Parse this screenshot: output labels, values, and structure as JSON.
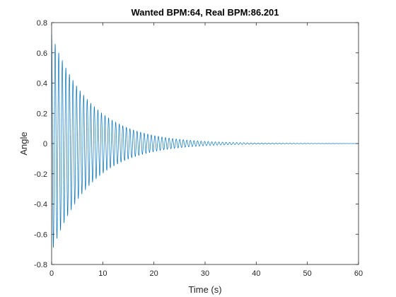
{
  "chart_data": {
    "type": "line",
    "title": "Wanted BPM:64, Real BPM:86.201",
    "xlabel": "Time (s)",
    "ylabel": "Angle",
    "xlim": [
      0,
      60
    ],
    "ylim": [
      -0.8,
      0.8
    ],
    "xticks": [
      0,
      10,
      20,
      30,
      40,
      50,
      60
    ],
    "yticks": [
      -0.8,
      -0.6,
      -0.4,
      -0.2,
      0,
      0.2,
      0.4,
      0.6,
      0.8
    ],
    "grid": false,
    "series": [
      {
        "color": "#0072bd",
        "initial_amplitude": 0.72,
        "peaks": [
          {
            "x": 0.1,
            "y": 0.72
          },
          {
            "x": 1.0,
            "y": -0.69
          },
          {
            "x": 1.9,
            "y": 0.61
          },
          {
            "x": 2.8,
            "y": -0.54
          },
          {
            "x": 3.9,
            "y": 0.48
          },
          {
            "x": 6.4,
            "y": -0.33
          },
          {
            "x": 10.5,
            "y": 0.2
          },
          {
            "x": 20.0,
            "y": 0.07
          },
          {
            "x": 30.0,
            "y": 0.02
          },
          {
            "x": 40.0,
            "y": 0.005
          },
          {
            "x": 60.0,
            "y": 0.0
          }
        ],
        "period_s": 0.696,
        "decay_rate": 0.13
      }
    ]
  }
}
